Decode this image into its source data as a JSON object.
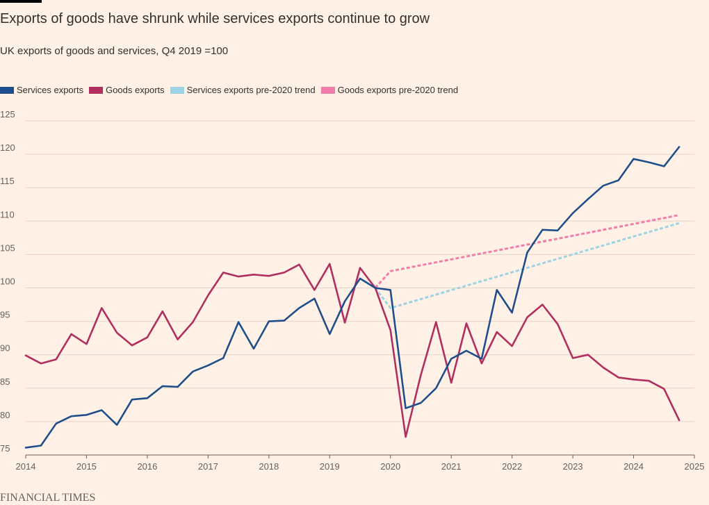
{
  "title": "Exports of goods have shrunk while services exports continue to grow",
  "subtitle": "UK exports of goods and services, Q4 2019 =100",
  "source": "FINANCIAL TIMES",
  "chart_data": {
    "type": "line",
    "ylim": [
      75,
      125
    ],
    "yticks": [
      75,
      80,
      85,
      90,
      95,
      100,
      105,
      110,
      115,
      120,
      125
    ],
    "xlim": [
      2014,
      2025
    ],
    "xticks": [
      "2014",
      "2015",
      "2016",
      "2017",
      "2018",
      "2019",
      "2020",
      "2021",
      "2022",
      "2023",
      "2024",
      "2025"
    ],
    "grid": true,
    "legend_position": "top-left",
    "series": [
      {
        "name": "Services exports",
        "color": "#1F4E8C",
        "style": "solid",
        "x": [
          2014.0,
          2014.25,
          2014.5,
          2014.75,
          2015.0,
          2015.25,
          2015.5,
          2015.75,
          2016.0,
          2016.25,
          2016.5,
          2016.75,
          2017.0,
          2017.25,
          2017.5,
          2017.75,
          2018.0,
          2018.25,
          2018.5,
          2018.75,
          2019.0,
          2019.25,
          2019.5,
          2019.75,
          2020.0,
          2020.25,
          2020.5,
          2020.75,
          2021.0,
          2021.25,
          2021.5,
          2021.75,
          2022.0,
          2022.25,
          2022.5,
          2022.75,
          2023.0,
          2023.25,
          2023.5,
          2023.75,
          2024.0,
          2024.25,
          2024.5,
          2024.75
        ],
        "values": [
          76.1,
          76.4,
          79.7,
          80.8,
          81.0,
          81.7,
          79.5,
          83.3,
          83.5,
          85.3,
          85.2,
          87.5,
          88.4,
          89.5,
          94.9,
          90.9,
          95.0,
          95.1,
          97.0,
          98.4,
          93.1,
          98.0,
          101.4,
          100.0,
          99.7,
          82.0,
          82.8,
          85.0,
          89.4,
          90.6,
          89.4,
          99.7,
          96.3,
          105.3,
          108.7,
          108.6,
          111.2,
          113.3,
          115.3,
          116.1,
          119.3,
          118.8,
          118.2,
          121.1
        ]
      },
      {
        "name": "Goods exports",
        "color": "#B02F5E",
        "style": "solid",
        "x": [
          2014.0,
          2014.25,
          2014.5,
          2014.75,
          2015.0,
          2015.25,
          2015.5,
          2015.75,
          2016.0,
          2016.25,
          2016.5,
          2016.75,
          2017.0,
          2017.25,
          2017.5,
          2017.75,
          2018.0,
          2018.25,
          2018.5,
          2018.75,
          2019.0,
          2019.25,
          2019.5,
          2019.75,
          2020.0,
          2020.25,
          2020.5,
          2020.75,
          2021.0,
          2021.25,
          2021.5,
          2021.75,
          2022.0,
          2022.25,
          2022.5,
          2022.75,
          2023.0,
          2023.25,
          2023.5,
          2023.75,
          2024.0,
          2024.25,
          2024.5,
          2024.75
        ],
        "values": [
          89.9,
          88.7,
          89.3,
          93.1,
          91.6,
          97.0,
          93.3,
          91.4,
          92.6,
          96.5,
          92.3,
          94.9,
          98.9,
          102.3,
          101.7,
          102.0,
          101.8,
          102.3,
          103.5,
          99.7,
          103.6,
          94.8,
          103.0,
          100.0,
          93.7,
          77.7,
          87.0,
          94.9,
          85.8,
          94.7,
          88.7,
          93.4,
          91.3,
          95.6,
          97.5,
          94.6,
          89.5,
          90.0,
          88.1,
          86.6,
          86.3,
          86.1,
          84.9,
          80.2
        ]
      },
      {
        "name": "Services exports pre-2020 trend",
        "color": "#9ED3E5",
        "style": "dashed",
        "x": [
          2019.75,
          2020.0,
          2024.75
        ],
        "values": [
          100.0,
          97.0,
          109.7
        ]
      },
      {
        "name": "Goods exports pre-2020 trend",
        "color": "#F27DAA",
        "style": "dashed",
        "x": [
          2019.75,
          2020.0,
          2024.75
        ],
        "values": [
          100.0,
          102.5,
          110.9
        ]
      }
    ]
  }
}
